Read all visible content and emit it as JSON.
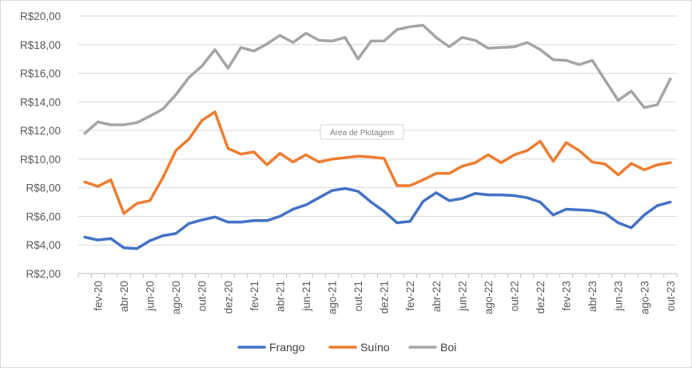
{
  "chart_data": {
    "type": "line",
    "title": "",
    "xlabel": "",
    "ylabel": "",
    "ylim": [
      2,
      20
    ],
    "y_ticks": [
      "R$2,00",
      "R$4,00",
      "R$6,00",
      "R$8,00",
      "R$10,00",
      "R$12,00",
      "R$14,00",
      "R$16,00",
      "R$18,00",
      "R$20,00"
    ],
    "y_tick_values": [
      2,
      4,
      6,
      8,
      10,
      12,
      14,
      16,
      18,
      20
    ],
    "grid": true,
    "legend_position": "bottom",
    "x": [
      "jan-20",
      "fev-20",
      "mar-20",
      "abr-20",
      "mai-20",
      "jun-20",
      "jul-20",
      "ago-20",
      "set-20",
      "out-20",
      "nov-20",
      "dez-20",
      "jan-21",
      "fev-21",
      "mar-21",
      "abr-21",
      "mai-21",
      "jun-21",
      "jul-21",
      "ago-21",
      "set-21",
      "out-21",
      "nov-21",
      "dez-21",
      "jan-22",
      "fev-22",
      "mar-22",
      "abr-22",
      "mai-22",
      "jun-22",
      "jul-22",
      "ago-22",
      "set-22",
      "out-22",
      "nov-22",
      "dez-22",
      "jan-23",
      "fev-23",
      "mar-23",
      "abr-23",
      "mai-23",
      "jun-23",
      "jul-23",
      "ago-23",
      "set-23",
      "out-23"
    ],
    "x_tick_labels": [
      "fev-20",
      "abr-20",
      "jun-20",
      "ago-20",
      "out-20",
      "dez-20",
      "fev-21",
      "abr-21",
      "jun-21",
      "ago-21",
      "out-21",
      "dez-21",
      "fev-22",
      "abr-22",
      "jun-22",
      "ago-22",
      "out-22",
      "dez-22",
      "fev-23",
      "abr-23",
      "jun-23",
      "ago-23",
      "out-23"
    ],
    "series": [
      {
        "name": "Frango",
        "color": "#4472c4",
        "values": [
          4.55,
          4.35,
          4.45,
          3.8,
          3.75,
          4.3,
          4.65,
          4.8,
          5.5,
          5.75,
          5.95,
          5.6,
          5.6,
          5.7,
          5.7,
          6.0,
          6.5,
          6.8,
          7.3,
          7.8,
          7.95,
          7.75,
          7.0,
          6.35,
          5.55,
          5.65,
          7.05,
          7.65,
          7.1,
          7.25,
          7.6,
          7.5,
          7.5,
          7.45,
          7.3,
          7.0,
          6.1,
          6.5,
          6.45,
          6.4,
          6.2,
          5.55,
          5.2,
          6.1,
          6.75,
          7.0
        ]
      },
      {
        "name": "Suíno",
        "color": "#ed7d31",
        "values": [
          8.4,
          8.1,
          8.55,
          6.2,
          6.9,
          7.1,
          8.7,
          10.6,
          11.4,
          12.7,
          13.3,
          10.75,
          10.35,
          10.5,
          9.6,
          10.4,
          9.8,
          10.3,
          9.8,
          10.0,
          10.1,
          10.2,
          10.15,
          10.05,
          8.15,
          8.15,
          8.55,
          9.0,
          9.0,
          9.5,
          9.75,
          10.3,
          9.75,
          10.3,
          10.6,
          11.25,
          9.85,
          11.15,
          10.6,
          9.8,
          9.65,
          8.9,
          9.7,
          9.25,
          9.6,
          9.75
        ]
      },
      {
        "name": "Boi",
        "color": "#a5a5a5",
        "values": [
          11.8,
          12.6,
          12.4,
          12.4,
          12.55,
          13.0,
          13.5,
          14.5,
          15.7,
          16.5,
          17.65,
          16.35,
          17.8,
          17.55,
          18.05,
          18.65,
          18.15,
          18.8,
          18.3,
          18.25,
          18.5,
          17.0,
          18.25,
          18.25,
          19.05,
          19.25,
          19.35,
          18.5,
          17.85,
          18.5,
          18.3,
          17.75,
          17.8,
          17.85,
          18.15,
          17.65,
          16.95,
          16.9,
          16.6,
          16.9,
          15.5,
          14.1,
          14.75,
          13.6,
          13.8,
          15.6
        ]
      }
    ]
  },
  "plot_tooltip": "Área de Plotagem"
}
